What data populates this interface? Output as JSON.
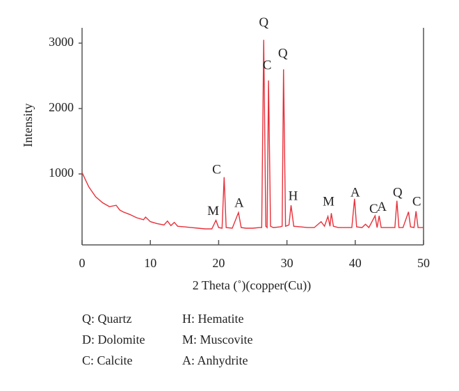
{
  "chart_data": {
    "type": "line",
    "x_label": "2 Theta (˚)(copper(Cu))",
    "y_label": "Intensity",
    "color": "#e8303a",
    "x": [
      0,
      1,
      2,
      3,
      4,
      5,
      5.5,
      6,
      7,
      8,
      9,
      9.3,
      10,
      11,
      12,
      12.5,
      13,
      13.5,
      14,
      15,
      16,
      17,
      18,
      19,
      19.6,
      20,
      20.5,
      20.8,
      21.1,
      22,
      22.9,
      23.3,
      24,
      25,
      26,
      26.3,
      26.6,
      26.9,
      27.1,
      27.3,
      27.6,
      28,
      29,
      29.3,
      29.5,
      29.8,
      30.3,
      30.6,
      31,
      32,
      33,
      34,
      35,
      35.5,
      36,
      36.3,
      36.5,
      36.8,
      37.5,
      38.5,
      39.5,
      39.9,
      40.2,
      41,
      41.5,
      42,
      42.9,
      43.2,
      43.5,
      43.8,
      45,
      45.8,
      46.1,
      46.4,
      47,
      47.8,
      48.1,
      48.6,
      48.9,
      49.2,
      50
    ],
    "values": [
      1020,
      800,
      650,
      560,
      500,
      520,
      450,
      420,
      380,
      330,
      300,
      340,
      270,
      240,
      220,
      280,
      210,
      260,
      200,
      190,
      180,
      170,
      160,
      160,
      290,
      180,
      170,
      950,
      180,
      170,
      410,
      180,
      170,
      170,
      180,
      180,
      3050,
      200,
      180,
      2430,
      200,
      180,
      190,
      200,
      2600,
      200,
      220,
      520,
      200,
      190,
      180,
      180,
      270,
      200,
      350,
      200,
      400,
      200,
      180,
      180,
      180,
      620,
      190,
      180,
      230,
      180,
      360,
      180,
      360,
      180,
      180,
      180,
      590,
      180,
      180,
      420,
      190,
      180,
      430,
      180,
      180
    ],
    "xlim": [
      0,
      50
    ],
    "xticks": [
      0,
      10,
      20,
      30,
      40,
      50
    ],
    "ylim": [
      -85,
      3234
    ],
    "yticks": [
      1000,
      2000,
      3000
    ],
    "annotations": [
      {
        "text": "M",
        "x": 19.2,
        "y": 420
      },
      {
        "text": "C",
        "x": 19.7,
        "y": 1050
      },
      {
        "text": "A",
        "x": 23,
        "y": 540
      },
      {
        "text": "Q",
        "x": 26.6,
        "y": 3300
      },
      {
        "text": "C",
        "x": 27.1,
        "y": 2650
      },
      {
        "text": "Q",
        "x": 29.4,
        "y": 2830
      },
      {
        "text": "H",
        "x": 30.9,
        "y": 650
      },
      {
        "text": "M",
        "x": 36.1,
        "y": 560
      },
      {
        "text": "A",
        "x": 40,
        "y": 700
      },
      {
        "text": "C",
        "x": 42.7,
        "y": 450
      },
      {
        "text": "A",
        "x": 43.9,
        "y": 480
      },
      {
        "text": "Q",
        "x": 46.2,
        "y": 700
      },
      {
        "text": "C",
        "x": 49.0,
        "y": 560
      }
    ],
    "notes": [
      "Q: Quartz",
      "D: Dolomite",
      "C: Calcite",
      "H: Hematite",
      "M: Muscovite",
      "A: Anhydrite"
    ]
  }
}
